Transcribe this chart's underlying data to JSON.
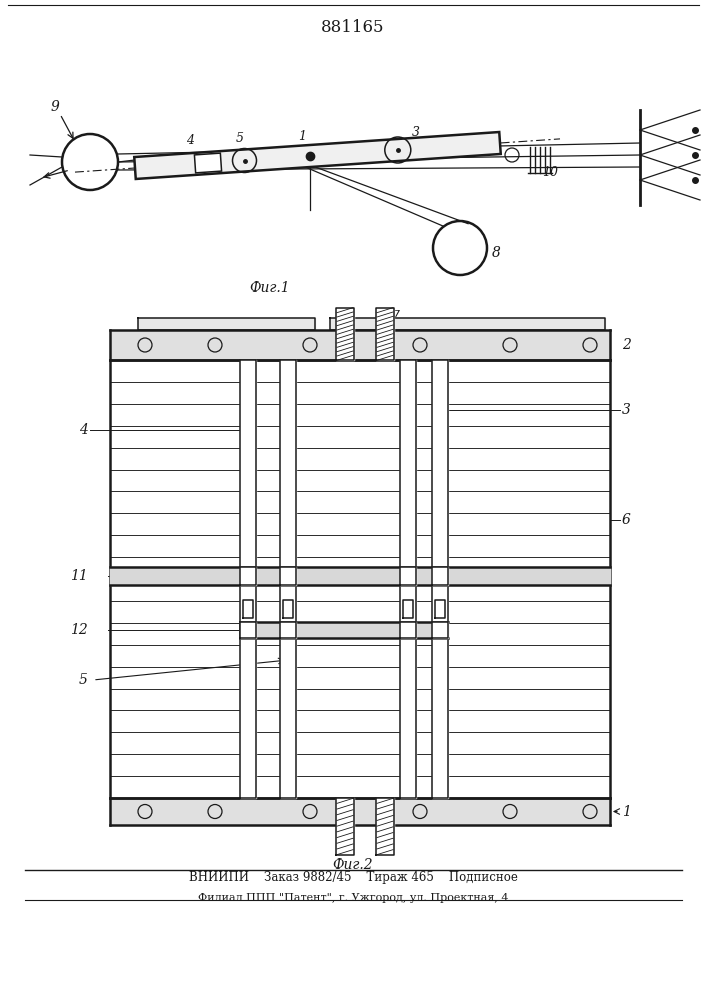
{
  "title": "881165",
  "fig1_label": "Фиг.1",
  "fig2_label": "Фиг.2",
  "bottom_line1": "ВНИИПИ    Заказ 9882/45    Тираж 465    Подписное",
  "bottom_line2": "Филиал ППП \"Патент\", г. Ужгород, ул. Проектная, 4",
  "bg_color": "#ffffff",
  "lc": "#1a1a1a"
}
